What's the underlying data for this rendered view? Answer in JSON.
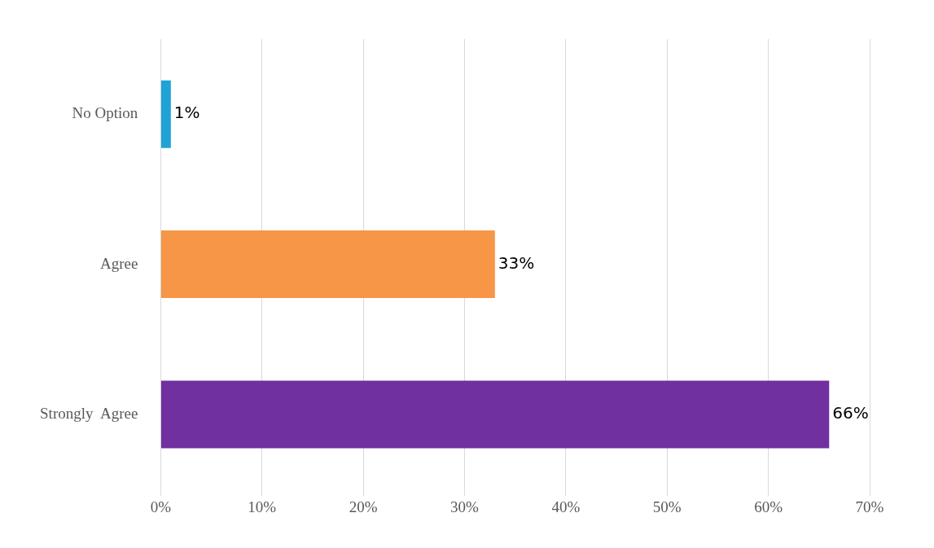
{
  "chart_data": {
    "type": "bar",
    "orientation": "horizontal",
    "categories": [
      "No Option",
      "Agree",
      "Strongly  Agree"
    ],
    "values": [
      1,
      33,
      66
    ],
    "colors": [
      "#1fa2d6",
      "#f79646",
      "#7030a0"
    ],
    "value_labels": [
      "1%",
      "33%",
      "66%"
    ],
    "xlim": [
      0,
      70
    ],
    "xticks": [
      {
        "value": 0,
        "label": "0%"
      },
      {
        "value": 10,
        "label": "10%"
      },
      {
        "value": 20,
        "label": "20%"
      },
      {
        "value": 30,
        "label": "30%"
      },
      {
        "value": 40,
        "label": "40%"
      },
      {
        "value": 50,
        "label": "50%"
      },
      {
        "value": 60,
        "label": "60%"
      },
      {
        "value": 70,
        "label": "70%"
      }
    ],
    "grid": "x",
    "legend": false
  }
}
